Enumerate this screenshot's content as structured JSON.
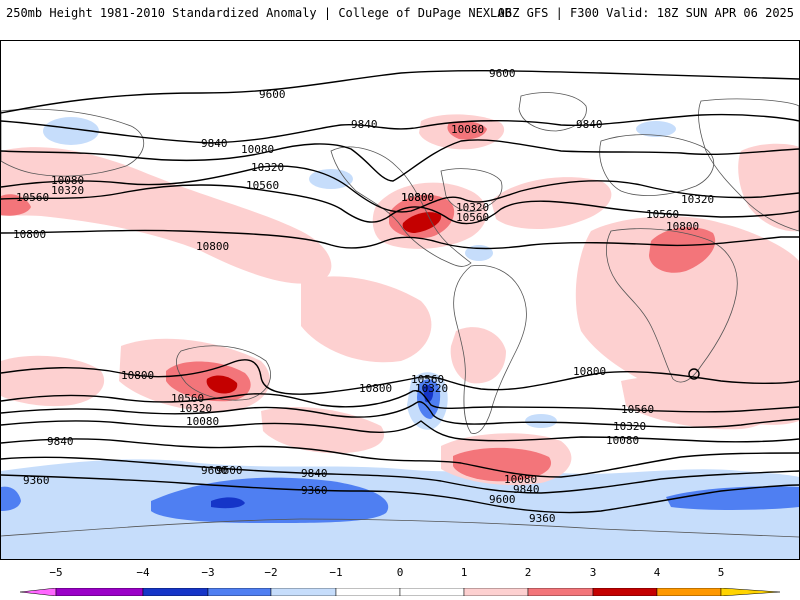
{
  "header": {
    "title": "250mb Height 1981-2010 Standardized Anomaly | College of DuPage NEXLAB",
    "run_info": "06Z GFS | F300 Valid: 18Z SUN APR 06 2025"
  },
  "map": {
    "projection": "equirectangular global",
    "central_region": "Atlantic / Americas center",
    "contour_labels": [
      {
        "text": "9600"
      },
      {
        "text": "9600"
      },
      {
        "text": "9840"
      },
      {
        "text": "9840"
      },
      {
        "text": "9840"
      },
      {
        "text": "10080"
      },
      {
        "text": "10080"
      },
      {
        "text": "10080"
      },
      {
        "text": "10320"
      },
      {
        "text": "10320"
      },
      {
        "text": "10320"
      },
      {
        "text": "10560"
      },
      {
        "text": "10560"
      },
      {
        "text": "10560"
      },
      {
        "text": "10800"
      },
      {
        "text": "10800"
      },
      {
        "text": "10800"
      },
      {
        "text": "10800"
      },
      {
        "text": "10800"
      },
      {
        "text": "10800"
      },
      {
        "text": "10800"
      },
      {
        "text": "10560"
      },
      {
        "text": "10320"
      },
      {
        "text": "10080"
      },
      {
        "text": "9840"
      },
      {
        "text": "10560"
      },
      {
        "text": "10320"
      },
      {
        "text": "10560"
      },
      {
        "text": "10320"
      },
      {
        "text": "10080"
      },
      {
        "text": "9840"
      },
      {
        "text": "9600"
      },
      {
        "text": "9360"
      },
      {
        "text": "9600"
      },
      {
        "text": "9360"
      },
      {
        "text": "9840"
      },
      {
        "text": "10080"
      },
      {
        "text": "9600"
      },
      {
        "text": "9360"
      },
      {
        "text": "10320"
      },
      {
        "text": "10560"
      },
      {
        "text": "10800"
      }
    ],
    "colors": {
      "pos1": "#fdd0d0",
      "pos2": "#f3757a",
      "pos3": "#c40000",
      "neg1": "#c6ddfb",
      "neg2": "#4f7ff2",
      "neg3": "#1535c8",
      "land_outline": "#555555",
      "contour": "#000000"
    }
  },
  "legend": {
    "ticks": [
      "−5",
      "−4",
      "−3",
      "−2",
      "−1",
      "0",
      "1",
      "2",
      "3",
      "4",
      "5"
    ],
    "colors": [
      "#ff66ff",
      "#9b00c8",
      "#1535c8",
      "#4f7ff2",
      "#c6ddfb",
      "#ffffff",
      "#ffffff",
      "#fdd0d0",
      "#f3757a",
      "#c40000",
      "#ff9900",
      "#ffd400"
    ]
  }
}
